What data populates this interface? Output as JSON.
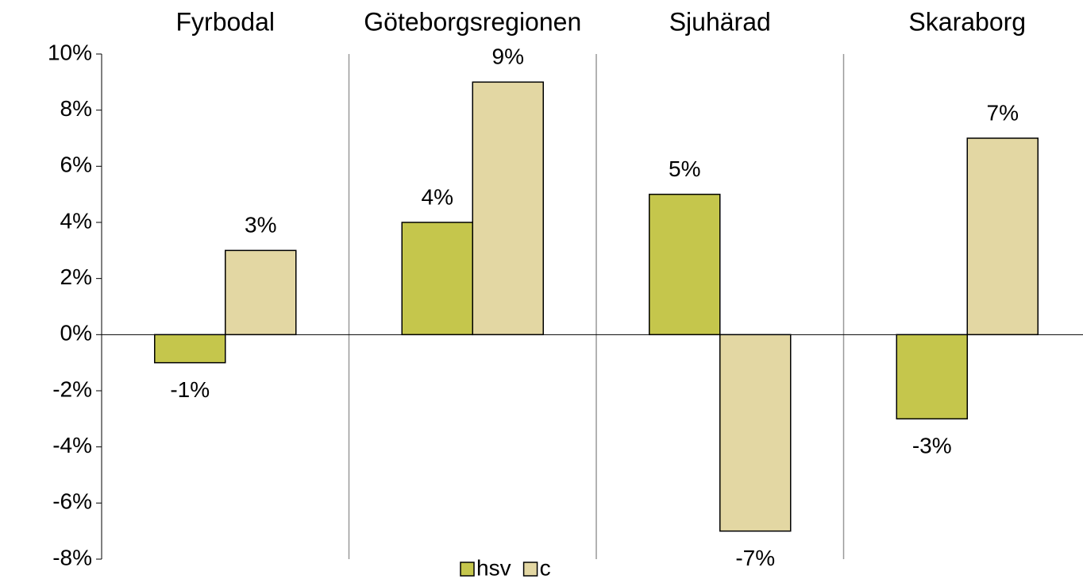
{
  "chart_data": {
    "type": "bar",
    "categories": [
      "Fyrbodal",
      "Göteborgsregionen",
      "Sjuhärad",
      "Skaraborg"
    ],
    "series": [
      {
        "name": "hsv",
        "color": "#c5c64c",
        "values": [
          -1,
          4,
          5,
          -3
        ],
        "value_labels": [
          "-1%",
          "4%",
          "5%",
          "-3%"
        ]
      },
      {
        "name": "c",
        "color": "#e3d7a3",
        "values": [
          3,
          9,
          -7,
          7
        ],
        "value_labels": [
          "3%",
          "9%",
          "-7%",
          "7%"
        ]
      }
    ],
    "ylim": [
      -8,
      10
    ],
    "yticks": [
      {
        "value": -8,
        "label": "-8%"
      },
      {
        "value": -6,
        "label": "-6%"
      },
      {
        "value": -4,
        "label": "-4%"
      },
      {
        "value": -2,
        "label": "-2%"
      },
      {
        "value": 0,
        "label": "0%"
      },
      {
        "value": 2,
        "label": "2%"
      },
      {
        "value": 4,
        "label": "4%"
      },
      {
        "value": 6,
        "label": "6%"
      },
      {
        "value": 8,
        "label": "8%"
      },
      {
        "value": 10,
        "label": "10%"
      }
    ],
    "legend": "bottom"
  }
}
